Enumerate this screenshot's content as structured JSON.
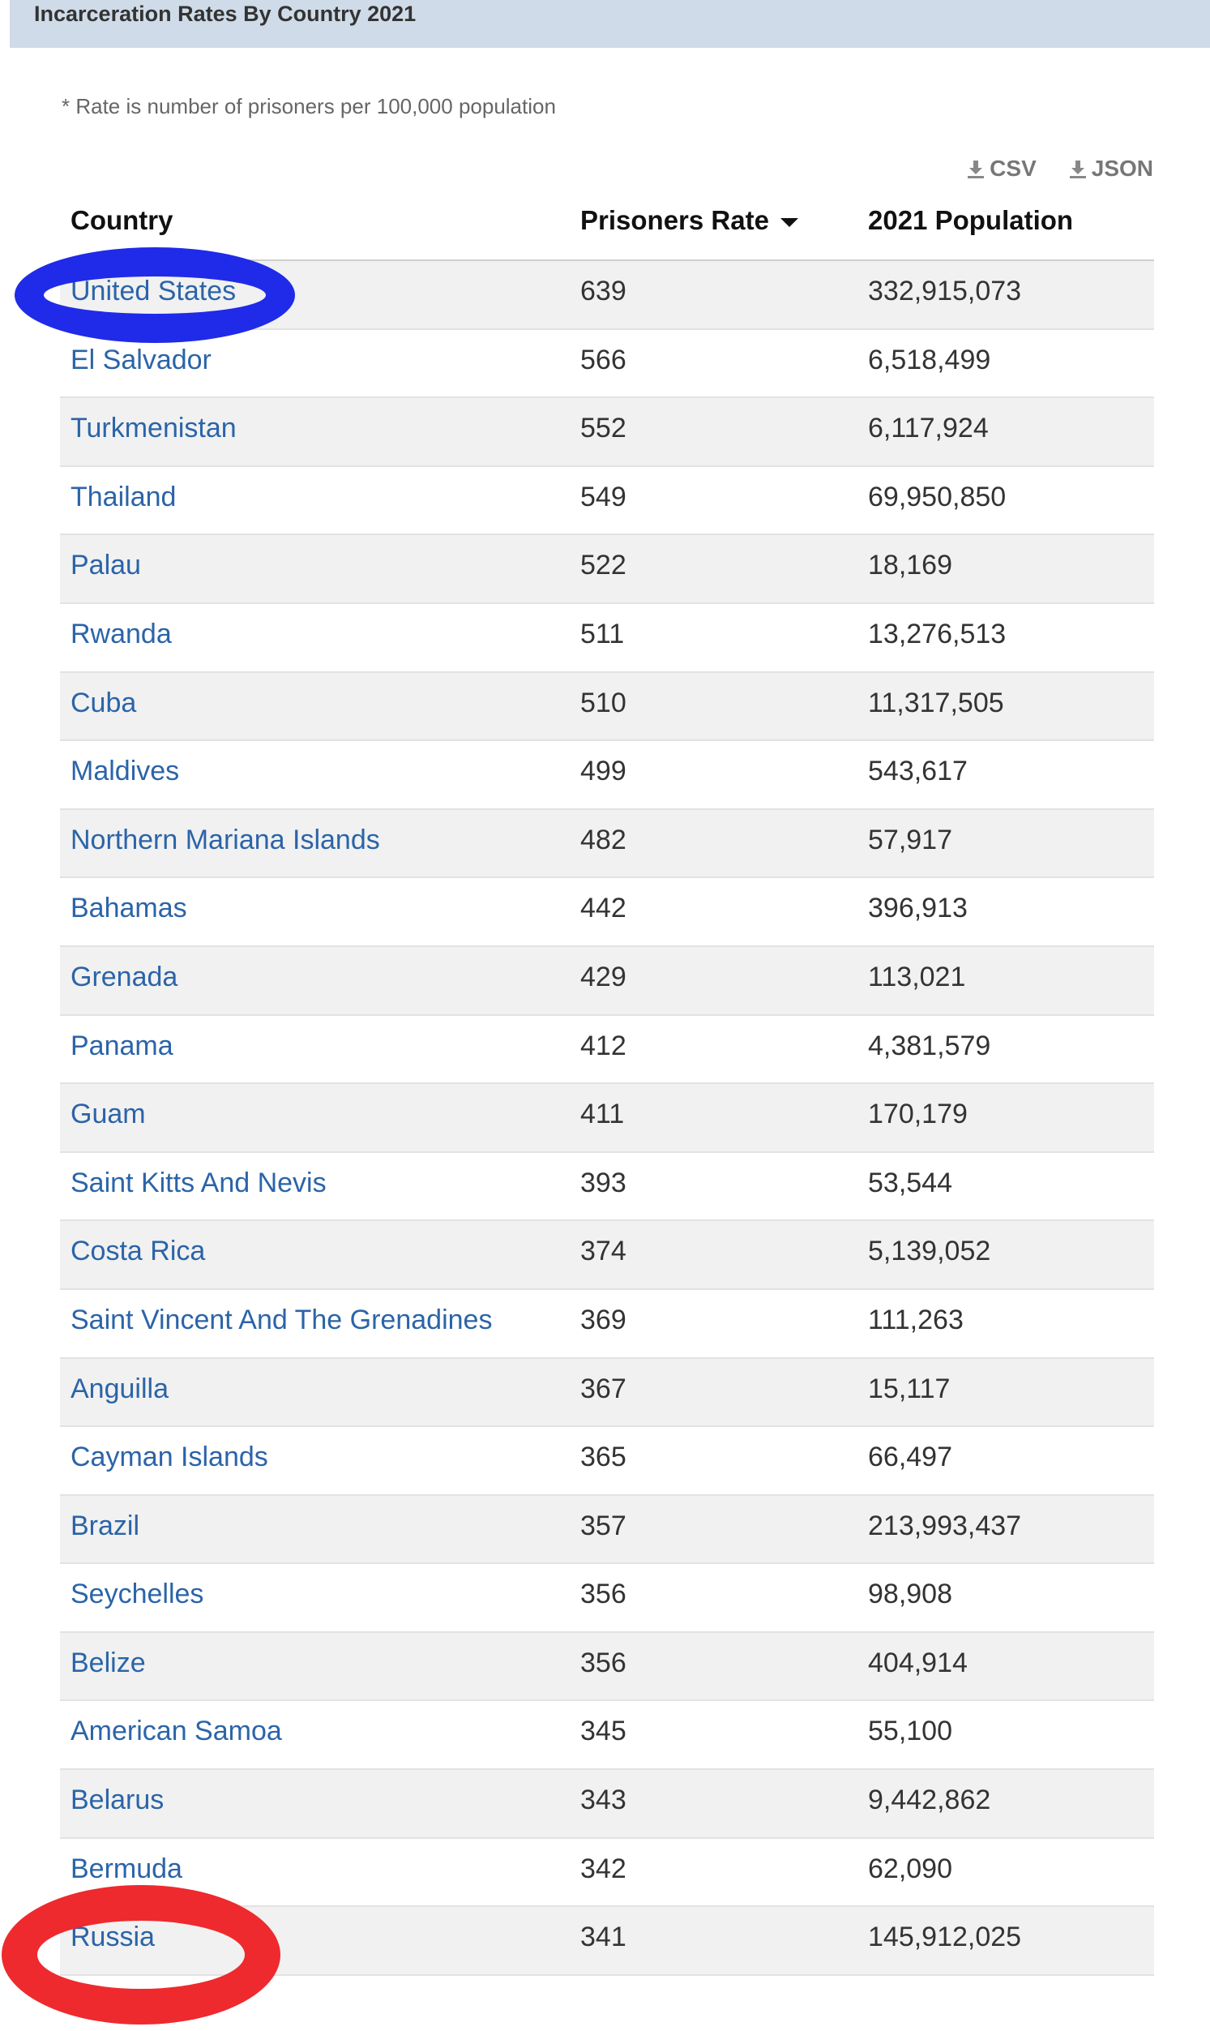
{
  "header": {
    "title": "Incarceration Rates By Country 2021"
  },
  "note": "* Rate is number of prisoners per 100,000 population",
  "downloads": [
    {
      "label": "CSV",
      "icon": "download-icon"
    },
    {
      "label": "JSON",
      "icon": "download-icon"
    }
  ],
  "table": {
    "columns": [
      "Country",
      "Prisoners Rate",
      "2021 Population"
    ],
    "sorted_column": "Prisoners Rate",
    "sort_direction": "descending",
    "rows": [
      {
        "country": "United States",
        "rate": "639",
        "population": "332,915,073"
      },
      {
        "country": "El Salvador",
        "rate": "566",
        "population": "6,518,499"
      },
      {
        "country": "Turkmenistan",
        "rate": "552",
        "population": "6,117,924"
      },
      {
        "country": "Thailand",
        "rate": "549",
        "population": "69,950,850"
      },
      {
        "country": "Palau",
        "rate": "522",
        "population": "18,169"
      },
      {
        "country": "Rwanda",
        "rate": "511",
        "population": "13,276,513"
      },
      {
        "country": "Cuba",
        "rate": "510",
        "population": "11,317,505"
      },
      {
        "country": "Maldives",
        "rate": "499",
        "population": "543,617"
      },
      {
        "country": "Northern Mariana Islands",
        "rate": "482",
        "population": "57,917"
      },
      {
        "country": "Bahamas",
        "rate": "442",
        "population": "396,913"
      },
      {
        "country": "Grenada",
        "rate": "429",
        "population": "113,021"
      },
      {
        "country": "Panama",
        "rate": "412",
        "population": "4,381,579"
      },
      {
        "country": "Guam",
        "rate": "411",
        "population": "170,179"
      },
      {
        "country": "Saint Kitts And Nevis",
        "rate": "393",
        "population": "53,544"
      },
      {
        "country": "Costa Rica",
        "rate": "374",
        "population": "5,139,052"
      },
      {
        "country": "Saint Vincent And The Grenadines",
        "rate": "369",
        "population": "111,263"
      },
      {
        "country": "Anguilla",
        "rate": "367",
        "population": "15,117"
      },
      {
        "country": "Cayman Islands",
        "rate": "365",
        "population": "66,497"
      },
      {
        "country": "Brazil",
        "rate": "357",
        "population": "213,993,437"
      },
      {
        "country": "Seychelles",
        "rate": "356",
        "population": "98,908"
      },
      {
        "country": "Belize",
        "rate": "356",
        "population": "404,914"
      },
      {
        "country": "American Samoa",
        "rate": "345",
        "population": "55,100"
      },
      {
        "country": "Belarus",
        "rate": "343",
        "population": "9,442,862"
      },
      {
        "country": "Bermuda",
        "rate": "342",
        "population": "62,090"
      },
      {
        "country": "Russia",
        "rate": "341",
        "population": "145,912,025"
      }
    ]
  },
  "annotations": [
    {
      "shape": "ellipse-outline",
      "color": "#1f2be8",
      "highlights": "United States"
    },
    {
      "shape": "ellipse-outline",
      "color": "#ee2a2e",
      "highlights": "Russia"
    }
  ]
}
